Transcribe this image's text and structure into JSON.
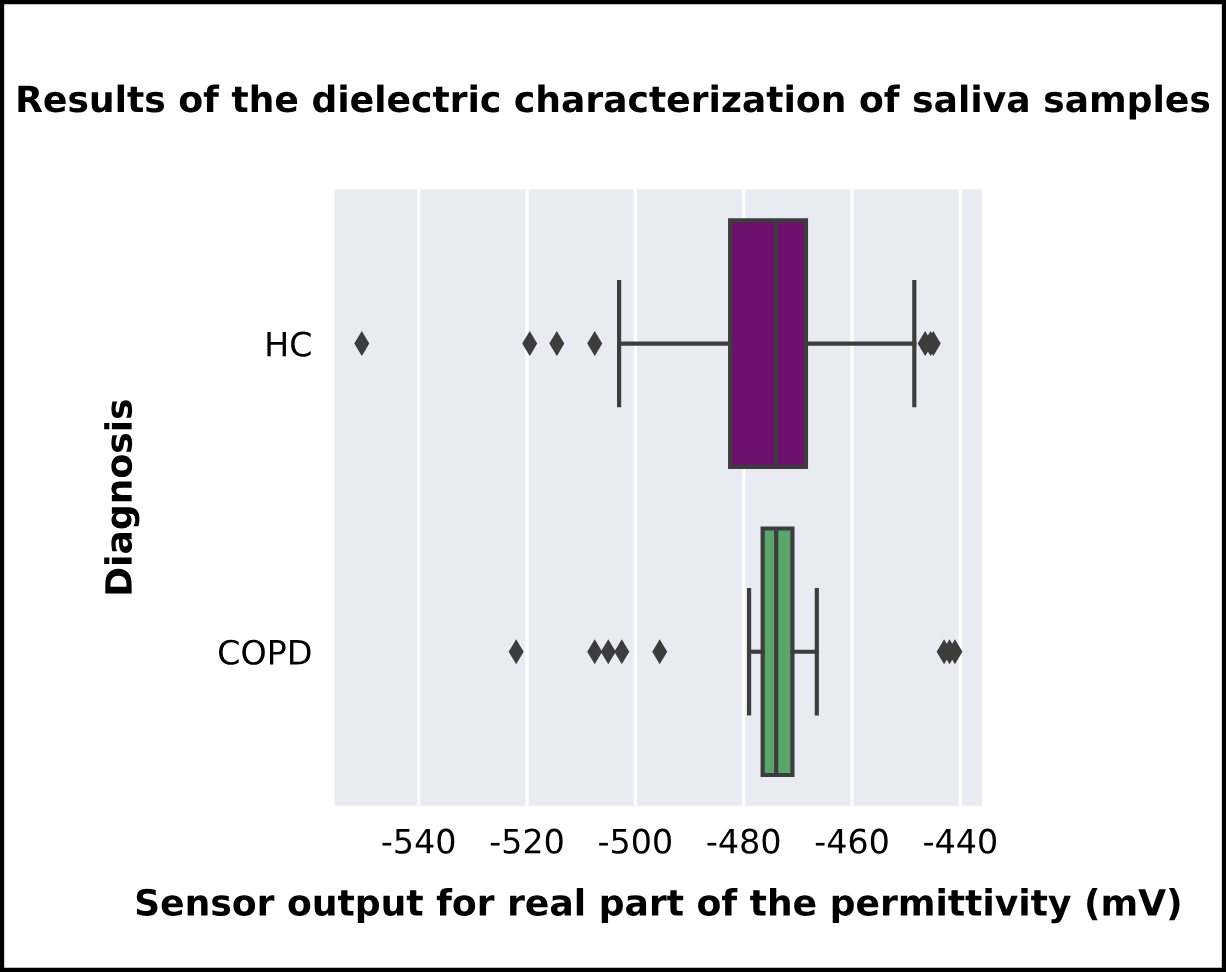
{
  "chart_data": {
    "type": "box",
    "orientation": "horizontal",
    "title": "Results of the dielectric characterization of saliva samples",
    "xlabel": "Sensor output for real part of the permittivity (mV)",
    "ylabel": "Diagnosis",
    "categories": [
      "HC",
      "COPD"
    ],
    "colors": [
      "#6e0f6e",
      "#5aa56a"
    ],
    "boxes": [
      {
        "low": -503,
        "q1": -482.5,
        "median": -474,
        "q3": -468.5,
        "high": -448.5,
        "outliers": [
          -550.5,
          -519.5,
          -514.5,
          -507.5,
          -446.5,
          -445.5,
          -445
        ]
      },
      {
        "low": -479,
        "q1": -476.5,
        "median": -474,
        "q3": -471,
        "high": -466.5,
        "outliers": [
          -522,
          -507.5,
          -505,
          -502.5,
          -495.5,
          -443,
          -442,
          -441
        ]
      }
    ],
    "xlim": [
      -555.5,
      -436
    ],
    "xticks": [
      -540,
      -520,
      -500,
      -480,
      -460,
      -440
    ],
    "grid": "x",
    "marker": "diamond"
  }
}
